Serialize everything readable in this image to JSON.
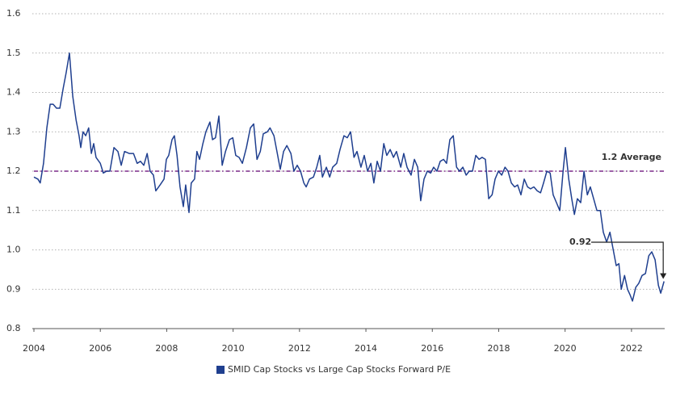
{
  "chart_data": {
    "type": "line",
    "xlim": [
      2004,
      2023
    ],
    "xticks": [
      2004,
      2006,
      2008,
      2010,
      2012,
      2014,
      2016,
      2018,
      2020,
      2022
    ],
    "ylim": [
      0.8,
      1.6
    ],
    "yticks": [
      0.8,
      0.9,
      {
        "value": 1,
        "label": "1.0"
      },
      1.1,
      1.2,
      1.3,
      1.4,
      1.5,
      1.6
    ],
    "grid": true,
    "legend": "bottom",
    "average": {
      "label": "1.2 Average",
      "value": 1.2,
      "color": "#7b2a8a"
    },
    "end_label": 0.92,
    "x": [
      2004.0,
      2004.12,
      2004.19,
      2004.29,
      2004.39,
      2004.49,
      2004.58,
      2004.68,
      2004.78,
      2004.88,
      2004.97,
      2005.07,
      2005.17,
      2005.27,
      2005.36,
      2005.41,
      2005.48,
      2005.56,
      2005.65,
      2005.73,
      2005.8,
      2005.87,
      2006.0,
      2006.09,
      2006.19,
      2006.29,
      2006.41,
      2006.53,
      2006.63,
      2006.73,
      2006.87,
      2007.0,
      2007.11,
      2007.21,
      2007.31,
      2007.41,
      2007.5,
      2007.6,
      2007.67,
      2007.8,
      2007.92,
      2007.99,
      2008.06,
      2008.16,
      2008.23,
      2008.31,
      2008.4,
      2008.5,
      2008.57,
      2008.67,
      2008.74,
      2008.84,
      2008.91,
      2008.99,
      2009.09,
      2009.18,
      2009.3,
      2009.38,
      2009.47,
      2009.57,
      2009.67,
      2009.77,
      2009.89,
      2009.99,
      2010.08,
      2010.18,
      2010.28,
      2010.4,
      2010.52,
      2010.62,
      2010.72,
      2010.82,
      2010.91,
      2011.03,
      2011.11,
      2011.23,
      2011.32,
      2011.42,
      2011.52,
      2011.62,
      2011.74,
      2011.83,
      2011.93,
      2012.03,
      2012.13,
      2012.2,
      2012.3,
      2012.42,
      2012.52,
      2012.61,
      2012.69,
      2012.81,
      2012.91,
      2013.0,
      2013.12,
      2013.22,
      2013.34,
      2013.44,
      2013.54,
      2013.64,
      2013.73,
      2013.85,
      2013.95,
      2014.05,
      2014.15,
      2014.24,
      2014.34,
      2014.44,
      2014.54,
      2014.63,
      2014.73,
      2014.83,
      2014.92,
      2015.05,
      2015.14,
      2015.24,
      2015.36,
      2015.46,
      2015.56,
      2015.65,
      2015.75,
      2015.85,
      2015.95,
      2016.04,
      2016.14,
      2016.24,
      2016.34,
      2016.43,
      2016.53,
      2016.63,
      2016.73,
      2016.82,
      2016.92,
      2017.02,
      2017.11,
      2017.21,
      2017.31,
      2017.41,
      2017.5,
      2017.6,
      2017.7,
      2017.8,
      2017.89,
      2017.99,
      2018.09,
      2018.19,
      2018.28,
      2018.38,
      2018.48,
      2018.57,
      2018.67,
      2018.77,
      2018.87,
      2018.96,
      2019.06,
      2019.16,
      2019.26,
      2019.35,
      2019.45,
      2019.55,
      2019.64,
      2019.74,
      2019.84,
      2019.94,
      2020.01,
      2020.11,
      2020.2,
      2020.28,
      2020.37,
      2020.47,
      2020.57,
      2020.67,
      2020.76,
      2020.86,
      2020.96,
      2021.06,
      2021.15,
      2021.25,
      2021.35,
      2021.45,
      2021.54,
      2021.62,
      2021.69,
      2021.79,
      2021.88,
      2021.96,
      2022.03,
      2022.13,
      2022.22,
      2022.32,
      2022.42,
      2022.52,
      2022.61,
      2022.71,
      2022.81,
      2022.88,
      2022.98
    ],
    "series": [
      {
        "name": "SMID Cap Stocks vs Large Cap Stocks Forward P/E",
        "color": "#1f3f8f",
        "values": [
          1.185,
          1.18,
          1.17,
          1.22,
          1.31,
          1.37,
          1.37,
          1.36,
          1.36,
          1.41,
          1.45,
          1.5,
          1.39,
          1.33,
          1.29,
          1.26,
          1.3,
          1.29,
          1.31,
          1.245,
          1.27,
          1.235,
          1.22,
          1.195,
          1.2,
          1.2,
          1.26,
          1.25,
          1.215,
          1.25,
          1.245,
          1.245,
          1.22,
          1.225,
          1.215,
          1.245,
          1.2,
          1.19,
          1.15,
          1.165,
          1.18,
          1.23,
          1.24,
          1.28,
          1.29,
          1.24,
          1.16,
          1.11,
          1.165,
          1.095,
          1.17,
          1.18,
          1.25,
          1.23,
          1.27,
          1.3,
          1.325,
          1.28,
          1.285,
          1.34,
          1.215,
          1.25,
          1.28,
          1.285,
          1.24,
          1.235,
          1.22,
          1.26,
          1.31,
          1.32,
          1.23,
          1.25,
          1.295,
          1.3,
          1.31,
          1.29,
          1.25,
          1.205,
          1.25,
          1.265,
          1.245,
          1.2,
          1.215,
          1.2,
          1.17,
          1.16,
          1.18,
          1.185,
          1.21,
          1.24,
          1.185,
          1.21,
          1.185,
          1.21,
          1.22,
          1.255,
          1.29,
          1.285,
          1.3,
          1.235,
          1.25,
          1.21,
          1.24,
          1.2,
          1.22,
          1.17,
          1.225,
          1.2,
          1.27,
          1.24,
          1.255,
          1.235,
          1.25,
          1.21,
          1.245,
          1.21,
          1.19,
          1.23,
          1.21,
          1.125,
          1.18,
          1.2,
          1.195,
          1.21,
          1.2,
          1.225,
          1.23,
          1.22,
          1.28,
          1.29,
          1.21,
          1.2,
          1.21,
          1.19,
          1.2,
          1.2,
          1.24,
          1.23,
          1.235,
          1.23,
          1.13,
          1.14,
          1.18,
          1.2,
          1.19,
          1.21,
          1.2,
          1.17,
          1.16,
          1.165,
          1.14,
          1.18,
          1.16,
          1.155,
          1.16,
          1.15,
          1.145,
          1.17,
          1.2,
          1.195,
          1.14,
          1.12,
          1.1,
          1.2,
          1.26,
          1.18,
          1.13,
          1.09,
          1.13,
          1.12,
          1.2,
          1.14,
          1.16,
          1.13,
          1.1,
          1.1,
          1.045,
          1.02,
          1.045,
          1.0,
          0.96,
          0.965,
          0.9,
          0.935,
          0.9,
          0.885,
          0.87,
          0.905,
          0.915,
          0.935,
          0.94,
          0.985,
          0.995,
          0.975,
          0.91,
          0.89,
          0.92
        ]
      }
    ]
  }
}
